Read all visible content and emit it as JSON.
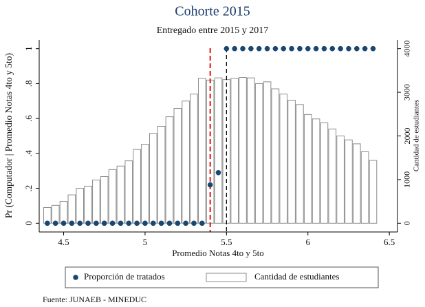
{
  "chart_data": {
    "type": "combo",
    "title": "Cohorte 2015",
    "subtitle": "Entregado entre 2015 y 2017",
    "xlabel": "Promedio Notas 4to y 5to",
    "ylabel": "Pr (Computador | Promedio Notas 4to y 5to)",
    "y2label": "Cantidad de estudiantes",
    "source": "Fuente: JUNAEB - MINEDUC",
    "xlim": [
      4.35,
      6.55
    ],
    "xticks": [
      4.5,
      5,
      5.5,
      6,
      6.5
    ],
    "ylim": [
      -0.05,
      1.05
    ],
    "yticks": [
      0,
      {
        "value": 0.2,
        "label": ".2"
      },
      {
        "value": 0.4,
        "label": ".4"
      },
      {
        "value": 0.6,
        "label": ".6"
      },
      {
        "value": 0.8,
        "label": ".8"
      },
      1
    ],
    "y2lim": [
      -200,
      4200
    ],
    "y2ticks": [
      0,
      1000,
      2000,
      3000,
      4000
    ],
    "legend": "bottom",
    "reference_lines": [
      {
        "x": 5.4,
        "color": "#e3120b"
      },
      {
        "x": 5.5,
        "color": "#000000"
      }
    ],
    "series": [
      {
        "name": "Proporción de tratados",
        "type": "scatter",
        "color": "#1a476f",
        "x": [
          4.4,
          4.45,
          4.5,
          4.55,
          4.6,
          4.65,
          4.7,
          4.75,
          4.8,
          4.85,
          4.9,
          4.95,
          5,
          5.05,
          5.1,
          5.15,
          5.2,
          5.25,
          5.3,
          5.35,
          5.4,
          5.45,
          5.5,
          5.55,
          5.6,
          5.65,
          5.7,
          5.75,
          5.8,
          5.85,
          5.9,
          5.95,
          6,
          6.05,
          6.1,
          6.15,
          6.2,
          6.25,
          6.3,
          6.35,
          6.4
        ],
        "values": [
          0,
          0,
          0,
          0,
          0,
          0,
          0,
          0,
          0,
          0,
          0,
          0,
          0,
          0,
          0,
          0,
          0,
          0,
          0,
          0,
          0.22,
          0.29,
          1,
          1,
          1,
          1,
          1,
          1,
          1,
          1,
          1,
          1,
          1,
          1,
          1,
          1,
          1,
          1,
          1,
          1,
          1
        ]
      },
      {
        "name": "Cantidad de estudiantes",
        "type": "histogram",
        "axis": "y2",
        "color": "#ffffff",
        "edgecolor": "#8c8c8c",
        "bins": [
          4.375,
          4.425,
          4.475,
          4.525,
          4.575,
          4.625,
          4.675,
          4.725,
          4.775,
          4.825,
          4.875,
          4.925,
          4.975,
          5.025,
          5.075,
          5.125,
          5.175,
          5.225,
          5.275,
          5.325,
          5.375,
          5.425,
          5.475,
          5.525,
          5.575,
          5.625,
          5.675,
          5.725,
          5.775,
          5.825,
          5.875,
          5.925,
          5.975,
          6.025,
          6.075,
          6.125,
          6.175,
          6.225,
          6.275,
          6.325,
          6.375,
          6.425
        ],
        "values": [
          360,
          410,
          500,
          650,
          800,
          850,
          990,
          1070,
          1230,
          1310,
          1430,
          1690,
          1810,
          2060,
          2220,
          2440,
          2630,
          2800,
          2960,
          3320,
          3280,
          3330,
          3290,
          3320,
          3340,
          3330,
          3200,
          3240,
          3080,
          2960,
          2820,
          2720,
          2490,
          2390,
          2300,
          2160,
          2000,
          1910,
          1820,
          1640,
          1440
        ]
      }
    ]
  }
}
